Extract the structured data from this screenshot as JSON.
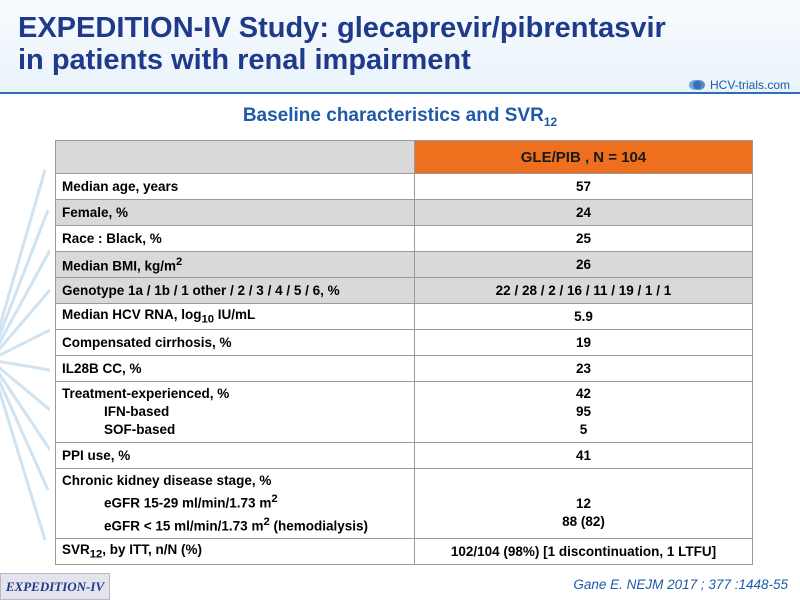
{
  "header": {
    "title_line1": "EXPEDITION-IV Study: glecaprevir/pibrentasvir",
    "title_line2": "in patients with renal impairment",
    "logo_text": "HCV-trials.com"
  },
  "subtitle": {
    "text": "Baseline characteristics and SVR",
    "sub": "12"
  },
  "table": {
    "header_value": "GLE/PIB , N = 104",
    "rows": {
      "age": {
        "label": "Median age, years",
        "value": "57"
      },
      "female": {
        "label": "Female, %",
        "value": "24"
      },
      "race": {
        "label": "Race : Black, %",
        "value": "25"
      },
      "bmi": {
        "label": "Median BMI, kg/m",
        "label_sup": "2",
        "value": "26"
      },
      "genotype": {
        "label": "Genotype 1a / 1b / 1 other / 2 / 3 / 4 / 5 / 6, %",
        "value": "22 / 28 / 2 / 16 / 11 / 19 / 1 / 1"
      },
      "hcv_rna": {
        "label_pre": "Median HCV RNA,  log",
        "label_sub": "10",
        "label_post": " IU/mL",
        "value": "5.9"
      },
      "cirrhosis": {
        "label": "Compensated cirrhosis, %",
        "value": "19"
      },
      "il28b": {
        "label": "IL28B CC, %",
        "value": "23"
      },
      "treatment": {
        "label": "Treatment-experienced, %",
        "value": "42",
        "sub1_label": "IFN-based",
        "sub1_value": "95",
        "sub2_label": "SOF-based",
        "sub2_value": "5"
      },
      "ppi": {
        "label": "PPI use, %",
        "value": "41"
      },
      "ckd": {
        "label": "Chronic kidney disease stage, %",
        "sub1_label": "eGFR 15-29 ml/min/1.73 m",
        "sub1_sup": "2",
        "sub1_value": "12",
        "sub2_label": "eGFR < 15 ml/min/1.73 m",
        "sub2_sup": "2",
        "sub2_post": " (hemodialysis)",
        "sub2_value": "88 (82)"
      },
      "svr": {
        "label_pre": "SVR",
        "label_sub": "12",
        "label_post": ", by ITT,  n/N (%)",
        "value": "102/104 (98%) [1 discontinuation, 1 LTFU]"
      }
    }
  },
  "footer": {
    "badge": "EXPEDITION-IV",
    "citation": "Gane E. NEJM 2017 ; 377 :1448-55"
  },
  "colors": {
    "title": "#1f3a8a",
    "accent_blue": "#1e5aa8",
    "header_orange": "#ee6f1e",
    "shaded_row": "#d9d9d9"
  },
  "icons": {
    "logo": "hcv-trials-logo-icon",
    "decoration": "radial-lines-decoration"
  }
}
